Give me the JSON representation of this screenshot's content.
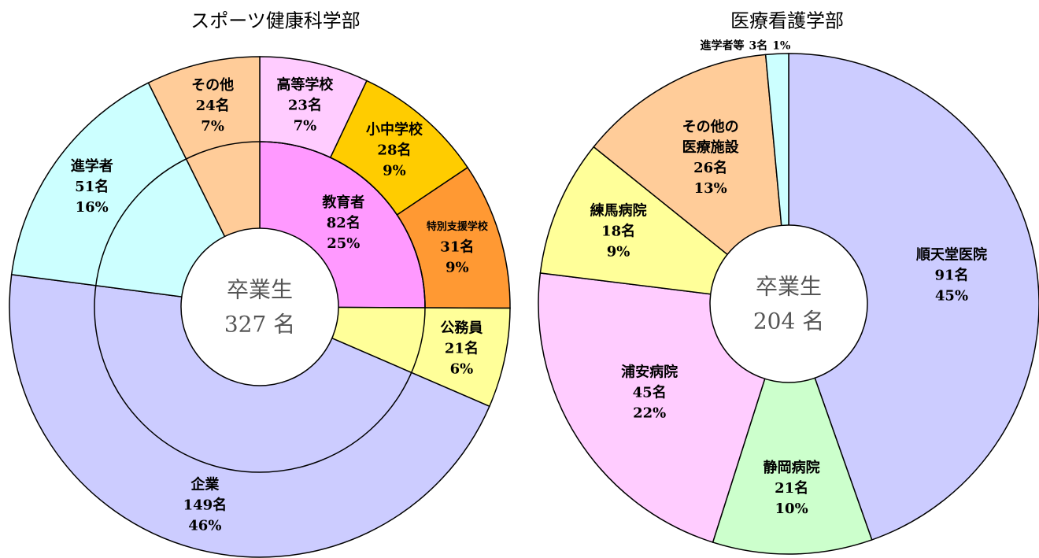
{
  "chart_data": [
    {
      "type": "sunburst",
      "title": "スポーツ健康科学部",
      "center_text": [
        "卒業生",
        "327 名"
      ],
      "segments": [
        {
          "name": "教育者",
          "value": 82,
          "value_label": "82名",
          "percent_label": "25%",
          "color": "#ff99ff",
          "children": [
            {
              "name": "高等学校",
              "value": 23,
              "value_label": "23名",
              "percent_label": "7%",
              "color": "#ffccff"
            },
            {
              "name": "小中学校",
              "value": 28,
              "value_label": "28名",
              "percent_label": "9%",
              "color": "#ffcc00"
            },
            {
              "name": "特別支援学校",
              "value": 31,
              "value_label": "31名",
              "percent_label": "9%",
              "color": "#ff9933"
            }
          ]
        },
        {
          "name": "公務員",
          "value": 21,
          "value_label": "21名",
          "percent_label": "6%",
          "color": "#ffff99"
        },
        {
          "name": "企業",
          "value": 149,
          "value_label": "149名",
          "percent_label": "46%",
          "color": "#ccccff"
        },
        {
          "name": "進学者",
          "value": 51,
          "value_label": "51名",
          "percent_label": "16%",
          "color": "#ccffff"
        },
        {
          "name": "その他",
          "value": 24,
          "value_label": "24名",
          "percent_label": "7%",
          "color": "#ffcc99"
        }
      ]
    },
    {
      "type": "donut",
      "title": "医療看護学部",
      "center_text": [
        "卒業生",
        "204 名"
      ],
      "segments": [
        {
          "name": "順天堂医院",
          "value": 91,
          "value_label": "91名",
          "percent_label": "45%",
          "color": "#ccccff"
        },
        {
          "name": "静岡病院",
          "value": 21,
          "value_label": "21名",
          "percent_label": "10%",
          "color": "#ccffcc"
        },
        {
          "name": "浦安病院",
          "value": 45,
          "value_label": "45名",
          "percent_label": "22%",
          "color": "#ffccff"
        },
        {
          "name": "練馬病院",
          "value": 18,
          "value_label": "18名",
          "percent_label": "9%",
          "color": "#ffff99"
        },
        {
          "name": [
            "その他の",
            "医療施設"
          ],
          "value": 26,
          "value_label": "26名",
          "percent_label": "13%",
          "color": "#ffcc99"
        },
        {
          "name": "進学者等",
          "value": 3,
          "value_label": "3名",
          "percent_label": "1%",
          "color": "#ccffff"
        }
      ]
    }
  ]
}
